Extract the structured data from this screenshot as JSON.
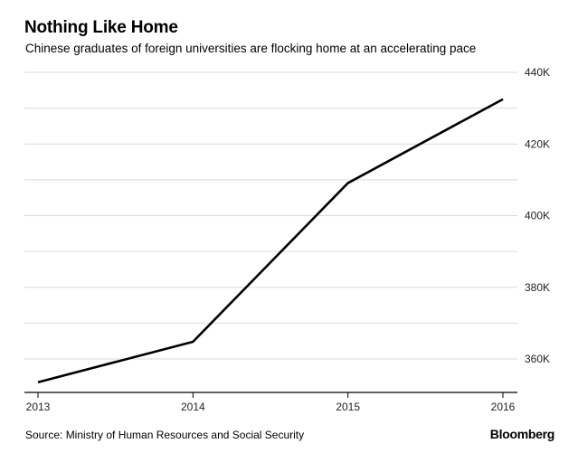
{
  "header": {
    "title": "Nothing Like Home",
    "subtitle": "Chinese graduates of foreign universities are flocking home at an accelerating pace"
  },
  "footer": {
    "source": "Source: Ministry of Human Resources and Social Security",
    "brand": "Bloomberg"
  },
  "chart_data": {
    "type": "line",
    "title": "Nothing Like Home",
    "subtitle": "Chinese graduates of foreign universities are flocking home at an accelerating pace",
    "xlabel": "",
    "ylabel": "",
    "categories": [
      "2013",
      "2014",
      "2015",
      "2016"
    ],
    "series": [
      {
        "values": [
          353500,
          364800,
          409100,
          432500
        ]
      }
    ],
    "ylim": [
      350000,
      442000
    ],
    "yticks": [
      360000,
      380000,
      400000,
      420000,
      440000
    ],
    "ytick_labels": [
      "360K",
      "380K",
      "400K",
      "420K",
      "440K"
    ],
    "y_axis_side": "right",
    "grid": true,
    "legend": "none",
    "colors": {
      "line": "#000000",
      "grid": "#d9d9d9",
      "axis": "#000000"
    }
  }
}
